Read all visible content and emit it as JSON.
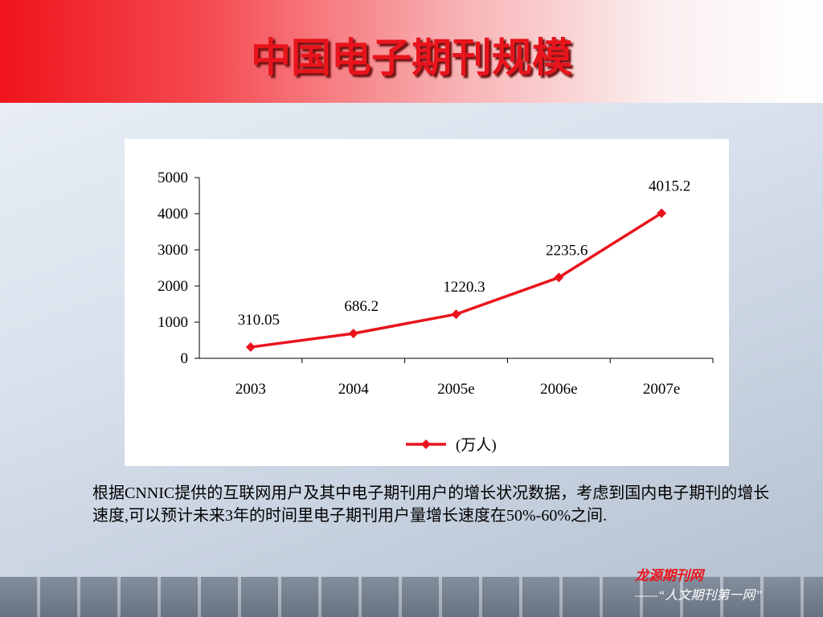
{
  "slide": {
    "title": "中国电子期刊规模",
    "paragraph": "根据CNNIC提供的互联网用户及其中电子期刊用户的增长状况数据，考虑到国内电子期刊的增长速度,可以预计未来3年的时间里电子期刊用户量增长速度在50%-60%之间.",
    "footer": {
      "brand": "龙源期刊网",
      "slogan": "——“人文期刊第一网”"
    }
  },
  "chart_data": {
    "type": "line",
    "categories": [
      "2003",
      "2004",
      "2005e",
      "2006e",
      "2007e"
    ],
    "series": [
      {
        "name": "(万人)",
        "color": "#e8141c",
        "values": [
          310.05,
          686.2,
          1220.3,
          2235.6,
          4015.2
        ]
      }
    ],
    "ylim": [
      0,
      5000
    ],
    "yticks": [
      0,
      1000,
      2000,
      3000,
      4000,
      5000
    ],
    "grid": false,
    "legend": "bottom"
  }
}
